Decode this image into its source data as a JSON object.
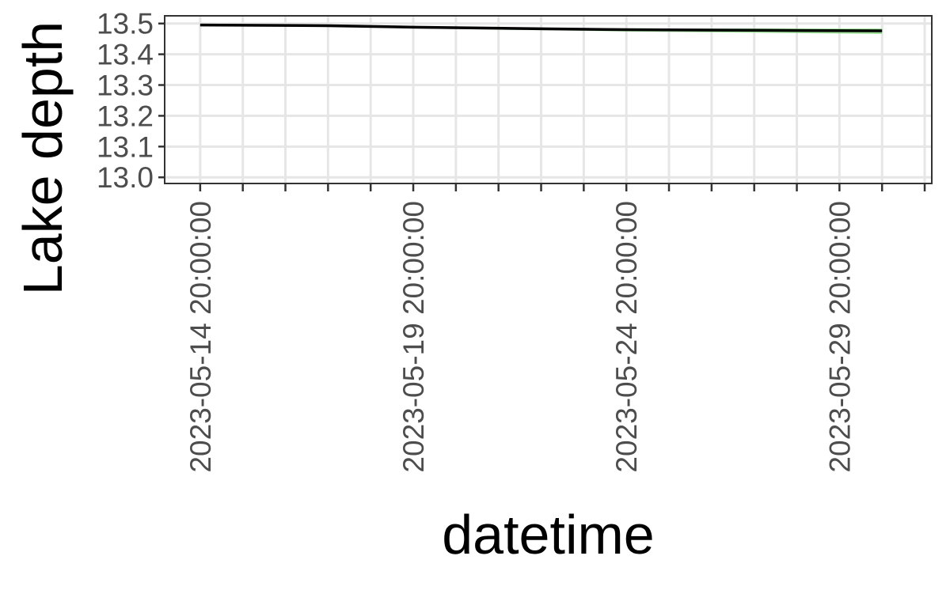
{
  "chart_data": {
    "type": "line",
    "title": "",
    "xlabel": "datetime",
    "ylabel": "Lake depth",
    "x_ticks": [
      "2023-05-14 20:00:00",
      "2023-05-19 20:00:00",
      "2023-05-24 20:00:00",
      "2023-05-29 20:00:00"
    ],
    "y_ticks": [
      "13.0",
      "13.1",
      "13.2",
      "13.3",
      "13.4",
      "13.5"
    ],
    "ylim": [
      12.98,
      13.525
    ],
    "xlim": [
      "2023-05-14 00:00:00",
      "2023-06-01 00:00:00"
    ],
    "grid": true,
    "legend": "none",
    "colors": {
      "line": "#000000",
      "band": "#8fdc8a",
      "grid": "#e6e6e6",
      "panel_border": "#333333",
      "tick_text": "#4d4d4d",
      "axis_title": "#000000"
    },
    "series": [
      {
        "x": [
          "2023-05-14 20:00:00",
          "2023-05-17 20:00:00",
          "2023-05-19 20:00:00",
          "2023-05-22 20:00:00",
          "2023-05-24 20:00:00",
          "2023-05-27 20:00:00",
          "2023-05-30 20:00:00"
        ],
        "y": [
          13.495,
          13.493,
          13.488,
          13.483,
          13.48,
          13.478,
          13.476
        ],
        "lower": [
          13.493,
          13.49,
          13.484,
          13.478,
          13.474,
          13.47,
          13.466
        ],
        "upper": [
          13.497,
          13.495,
          13.491,
          13.486,
          13.484,
          13.484,
          13.484
        ]
      }
    ]
  }
}
